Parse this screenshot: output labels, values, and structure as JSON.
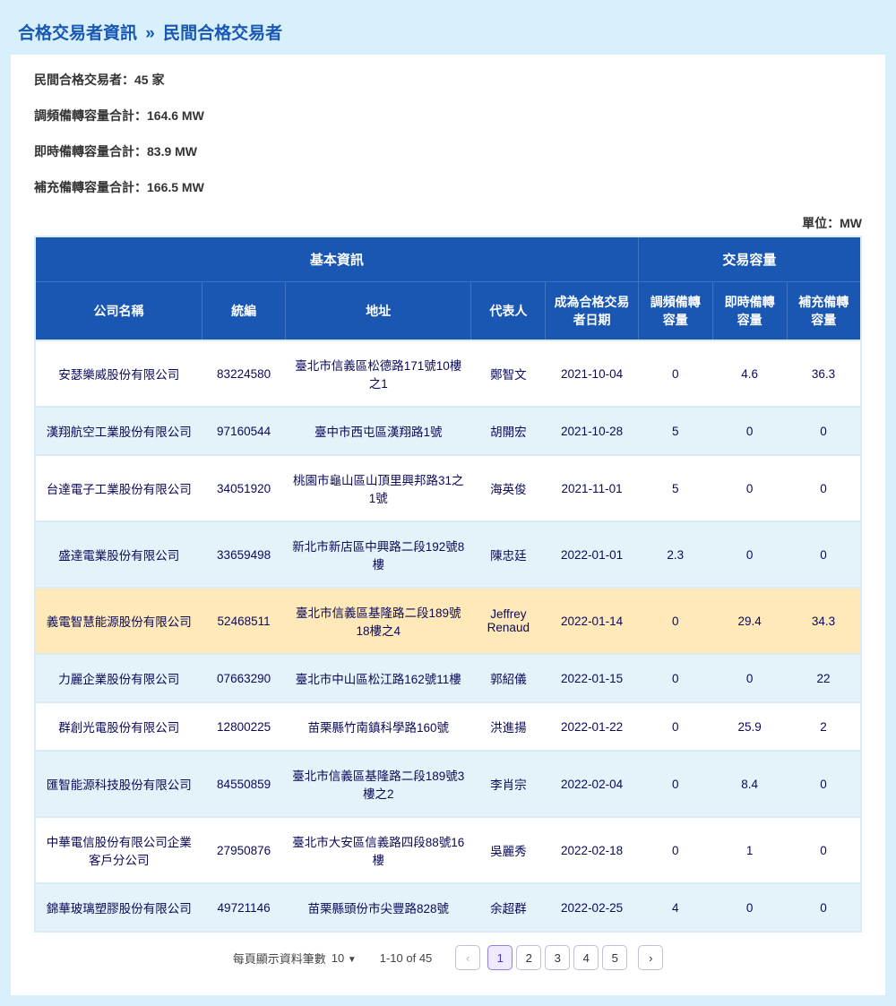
{
  "breadcrumb": {
    "root": "合格交易者資訊",
    "sep": "»",
    "current": "民間合格交易者"
  },
  "summary": {
    "count_label": "民間合格交易者：",
    "count_value": "45 家",
    "freq_label": "調頻備轉容量合計：",
    "freq_value": "164.6 MW",
    "instant_label": "即時備轉容量合計：",
    "instant_value": "83.9 MW",
    "supp_label": "補充備轉容量合計：",
    "supp_value": "166.5 MW"
  },
  "unit_label": "單位：MW",
  "table": {
    "group_basic": "基本資訊",
    "group_capacity": "交易容量",
    "columns": {
      "company": "公司名稱",
      "taxid": "統編",
      "address": "地址",
      "rep": "代表人",
      "date": "成為合格交易者日期",
      "freq": "調頻備轉容量",
      "instant": "即時備轉容量",
      "supp": "補充備轉容量"
    },
    "rows": [
      {
        "company": "安瑟樂威股份有限公司",
        "taxid": "83224580",
        "address": "臺北市信義區松德路171號10樓之1",
        "rep": "鄭智文",
        "date": "2021-10-04",
        "freq": "0",
        "instant": "4.6",
        "supp": "36.3",
        "hl": false
      },
      {
        "company": "漢翔航空工業股份有限公司",
        "taxid": "97160544",
        "address": "臺中市西屯區漢翔路1號",
        "rep": "胡開宏",
        "date": "2021-10-28",
        "freq": "5",
        "instant": "0",
        "supp": "0",
        "hl": false
      },
      {
        "company": "台達電子工業股份有限公司",
        "taxid": "34051920",
        "address": "桃園市龜山區山頂里興邦路31之1號",
        "rep": "海英俊",
        "date": "2021-11-01",
        "freq": "5",
        "instant": "0",
        "supp": "0",
        "hl": false
      },
      {
        "company": "盛達電業股份有限公司",
        "taxid": "33659498",
        "address": "新北市新店區中興路二段192號8樓",
        "rep": "陳忠廷",
        "date": "2022-01-01",
        "freq": "2.3",
        "instant": "0",
        "supp": "0",
        "hl": false
      },
      {
        "company": "義電智慧能源股份有限公司",
        "taxid": "52468511",
        "address": "臺北市信義區基隆路二段189號18樓之4",
        "rep": "Jeffrey Renaud",
        "date": "2022-01-14",
        "freq": "0",
        "instant": "29.4",
        "supp": "34.3",
        "hl": true
      },
      {
        "company": "力麗企業股份有限公司",
        "taxid": "07663290",
        "address": "臺北市中山區松江路162號11樓",
        "rep": "郭紹儀",
        "date": "2022-01-15",
        "freq": "0",
        "instant": "0",
        "supp": "22",
        "hl": false
      },
      {
        "company": "群創光電股份有限公司",
        "taxid": "12800225",
        "address": "苗栗縣竹南鎮科學路160號",
        "rep": "洪進揚",
        "date": "2022-01-22",
        "freq": "0",
        "instant": "25.9",
        "supp": "2",
        "hl": false
      },
      {
        "company": "匯智能源科技股份有限公司",
        "taxid": "84550859",
        "address": "臺北市信義區基隆路二段189號3樓之2",
        "rep": "李肖宗",
        "date": "2022-02-04",
        "freq": "0",
        "instant": "8.4",
        "supp": "0",
        "hl": false
      },
      {
        "company": "中華電信股份有限公司企業客戶分公司",
        "taxid": "27950876",
        "address": "臺北市大安區信義路四段88號16樓",
        "rep": "吳麗秀",
        "date": "2022-02-18",
        "freq": "0",
        "instant": "1",
        "supp": "0",
        "hl": false
      },
      {
        "company": "錦華玻璃塑膠股份有限公司",
        "taxid": "49721146",
        "address": "苗栗縣頭份市尖豐路828號",
        "rep": "余超群",
        "date": "2022-02-25",
        "freq": "4",
        "instant": "0",
        "supp": "0",
        "hl": false
      }
    ]
  },
  "pager": {
    "size_label": "每頁顯示資料筆數",
    "size_value": "10",
    "range": "1-10 of 45",
    "prev": "‹",
    "next": "›",
    "pages": [
      "1",
      "2",
      "3",
      "4",
      "5"
    ],
    "current": 1
  }
}
